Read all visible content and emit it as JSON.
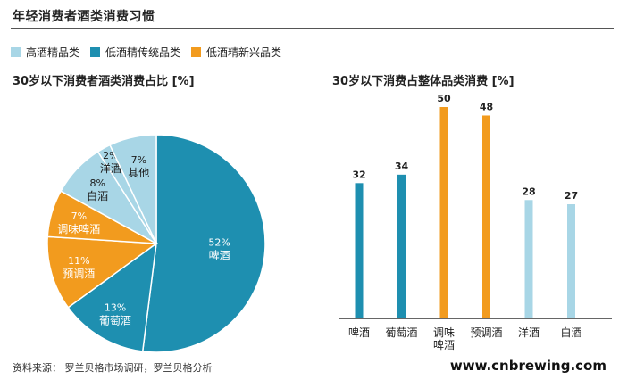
{
  "title": "年轻消费者酒类消费习惯",
  "legend": [
    {
      "label": "高酒精品类",
      "color": "#a8d6e6"
    },
    {
      "label": "低酒精传统品类",
      "color": "#1e8fb0"
    },
    {
      "label": "低酒精新兴品类",
      "color": "#f29b1e"
    }
  ],
  "source": "资料来源：  罗兰贝格市场调研，罗兰贝格分析",
  "watermark": "www.cnbrewing.com",
  "chart_data": [
    {
      "type": "pie",
      "title": "30岁以下消费者酒类消费占比 [%]",
      "slices": [
        {
          "label": "啤酒",
          "value": 52,
          "pct": "52%",
          "color": "#1e8fb0"
        },
        {
          "label": "葡萄酒",
          "value": 13,
          "pct": "13%",
          "color": "#1e8fb0"
        },
        {
          "label": "预调酒",
          "value": 11,
          "pct": "11%",
          "color": "#f29b1e"
        },
        {
          "label": "调味啤酒",
          "value": 7,
          "pct": "7%",
          "color": "#f29b1e"
        },
        {
          "label": "白酒",
          "value": 8,
          "pct": "8%",
          "color": "#a8d6e6"
        },
        {
          "label": "洋酒",
          "value": 2,
          "pct": "2%",
          "color": "#a8d6e6"
        },
        {
          "label": "其他",
          "value": 7,
          "pct": "7%",
          "color": "#a8d6e6"
        }
      ]
    },
    {
      "type": "bar",
      "title": "30岁以下消费占整体品类消费 [%]",
      "categories": [
        "啤酒",
        "葡萄酒",
        "调味啤酒",
        "预调酒",
        "洋酒",
        "白酒"
      ],
      "category_lines": [
        [
          "啤酒"
        ],
        [
          "葡萄酒"
        ],
        [
          "调味",
          "啤酒"
        ],
        [
          "预调酒"
        ],
        [
          "洋酒"
        ],
        [
          "白酒"
        ]
      ],
      "values": [
        32,
        34,
        50,
        48,
        28,
        27
      ],
      "colors": [
        "#1e8fb0",
        "#1e8fb0",
        "#f29b1e",
        "#f29b1e",
        "#a8d6e6",
        "#a8d6e6"
      ],
      "ylim": [
        0,
        50
      ]
    }
  ]
}
